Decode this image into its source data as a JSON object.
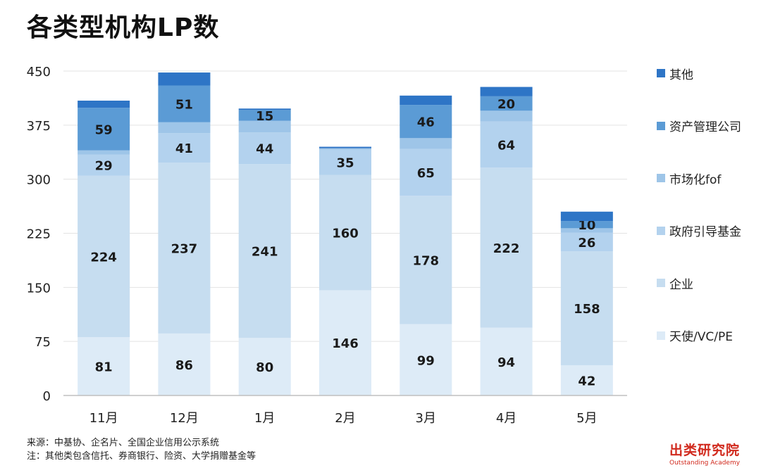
{
  "title": "各类型机构LP数",
  "notes": {
    "source": "来源：中基协、企名片、全国企业信用公示系统",
    "note": "注：其他类包含信托、券商银行、险资、大学捐赠基金等"
  },
  "logo": {
    "cn": "出类研究院",
    "en": "Outstanding Academy"
  },
  "chart_data": {
    "type": "bar",
    "stacked": true,
    "categories": [
      "11月",
      "12月",
      "1月",
      "2月",
      "3月",
      "4月",
      "5月"
    ],
    "ylim": [
      0,
      450
    ],
    "yticks": [
      0,
      75,
      150,
      225,
      300,
      375,
      450
    ],
    "grid": true,
    "legend_position": "right",
    "series": [
      {
        "name": "天使/VC/PE",
        "color": "#ddebf7",
        "values": [
          81,
          86,
          80,
          146,
          99,
          94,
          42
        ],
        "labels": [
          "81",
          "86",
          "80",
          "146",
          "99",
          "94",
          "42"
        ]
      },
      {
        "name": "企业",
        "color": "#c6ddf0",
        "values": [
          224,
          237,
          241,
          160,
          178,
          222,
          158
        ],
        "labels": [
          "224",
          "237",
          "241",
          "160",
          "178",
          "222",
          "158"
        ]
      },
      {
        "name": "政府引导基金",
        "color": "#b3d2ee",
        "values": [
          29,
          41,
          44,
          35,
          65,
          64,
          26
        ],
        "labels": [
          "29",
          "41",
          "44",
          "35",
          "65",
          "64",
          "26"
        ]
      },
      {
        "name": "市场化fof",
        "color": "#9ec5e8",
        "values": [
          6,
          15,
          16,
          2,
          15,
          15,
          6
        ],
        "labels": [
          "",
          "",
          "",
          "",
          "",
          "",
          ""
        ]
      },
      {
        "name": "资产管理公司",
        "color": "#5b9bd5",
        "values": [
          59,
          51,
          15,
          0,
          46,
          20,
          10
        ],
        "labels": [
          "59",
          "51",
          "15",
          "",
          "46",
          "20",
          "10"
        ]
      },
      {
        "name": "其他",
        "color": "#2e75c6",
        "values": [
          10,
          18,
          2,
          2,
          13,
          13,
          13
        ],
        "labels": [
          "",
          "",
          "",
          "",
          "",
          "",
          ""
        ]
      }
    ]
  }
}
